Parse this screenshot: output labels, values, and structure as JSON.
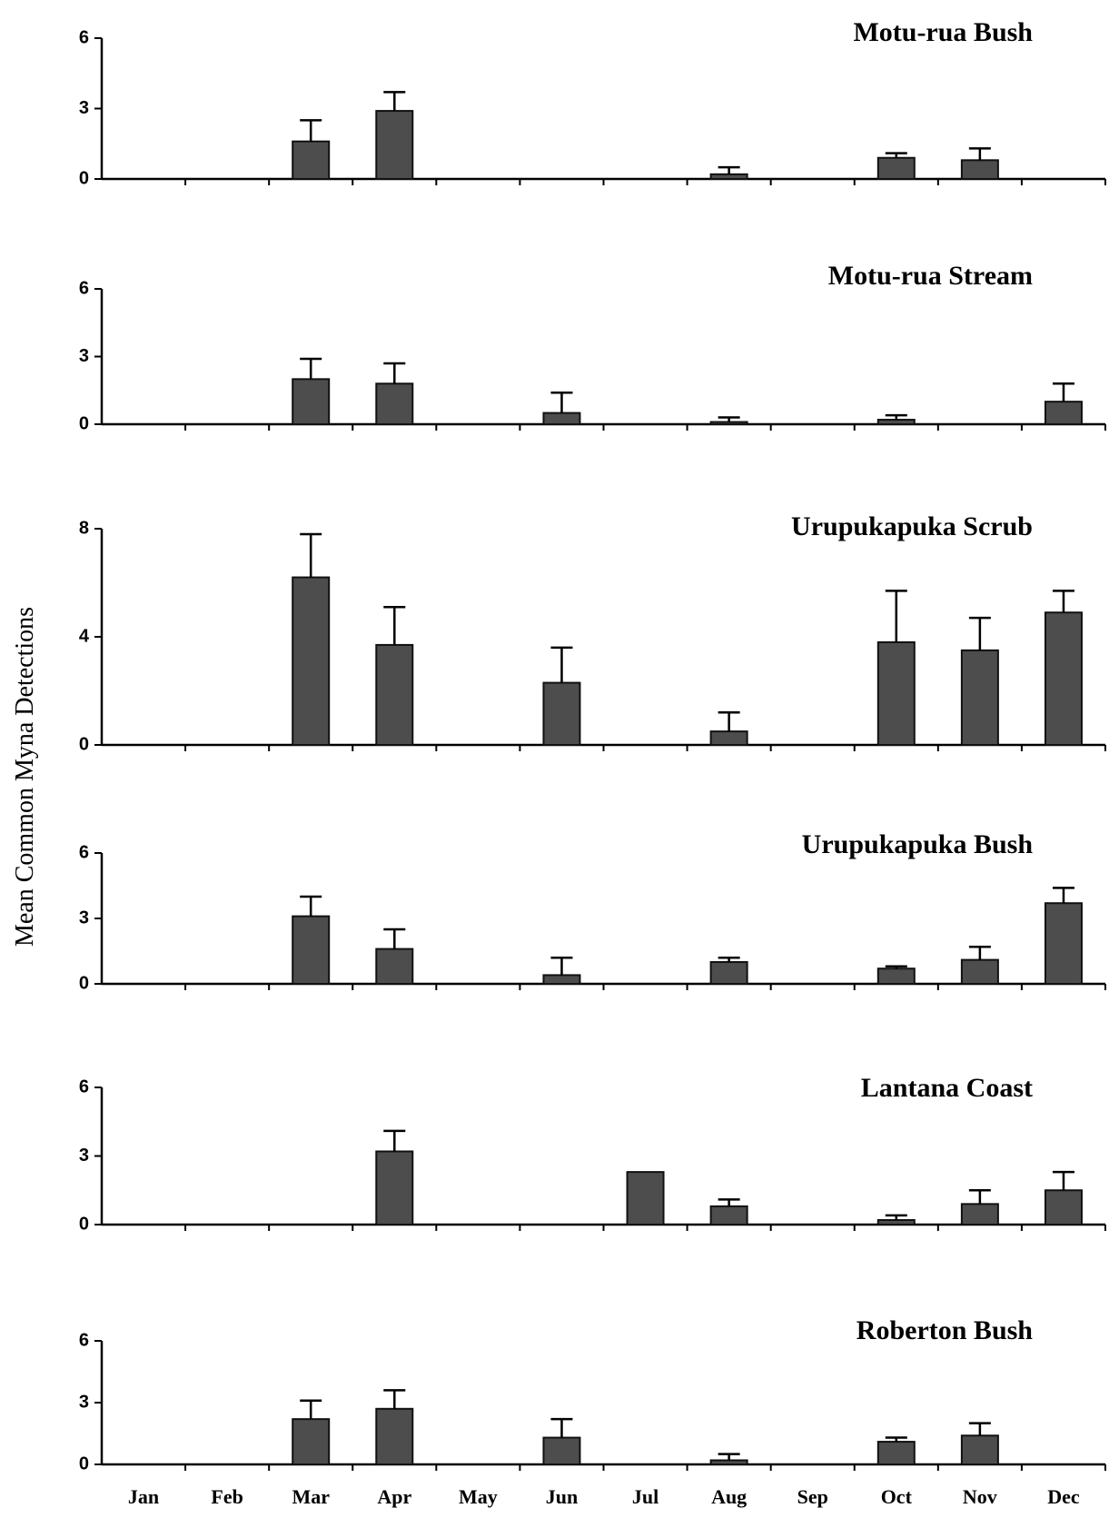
{
  "chart_data": {
    "type": "bar",
    "ylabel": "Mean Common Myna Detections",
    "categories": [
      "Jan",
      "Feb",
      "Mar",
      "Apr",
      "May",
      "Jun",
      "Jul",
      "Aug",
      "Sep",
      "Oct",
      "Nov",
      "Dec"
    ],
    "panels": [
      {
        "title": "Motu-rua Bush",
        "ylim": [
          0,
          6
        ],
        "yticks": [
          "0",
          "3",
          "6"
        ],
        "values": [
          0,
          0,
          1.6,
          2.9,
          0,
          0,
          0,
          0.2,
          0,
          0.9,
          0.8,
          0
        ],
        "errors": [
          0,
          0,
          0.9,
          0.8,
          0,
          0,
          0,
          0.3,
          0,
          0.2,
          0.5,
          0
        ]
      },
      {
        "title": "Motu-rua Stream",
        "ylim": [
          0,
          6
        ],
        "yticks": [
          "0",
          "3",
          "6"
        ],
        "values": [
          0,
          0,
          2.0,
          1.8,
          0,
          0.5,
          0,
          0.1,
          0,
          0.2,
          0,
          1.0
        ],
        "errors": [
          0,
          0,
          0.9,
          0.9,
          0,
          0.9,
          0,
          0.2,
          0,
          0.2,
          0,
          0.8
        ]
      },
      {
        "title": "Urupukapuka Scrub",
        "ylim": [
          0,
          8
        ],
        "yticks": [
          "0",
          "4",
          "8"
        ],
        "values": [
          0,
          0,
          6.2,
          3.7,
          0,
          2.3,
          0,
          0.5,
          0,
          3.8,
          3.5,
          4.9
        ],
        "errors": [
          0,
          0,
          1.6,
          1.4,
          0,
          1.3,
          0,
          0.7,
          0,
          1.9,
          1.2,
          0.8
        ]
      },
      {
        "title": "Urupukapuka Bush",
        "ylim": [
          0,
          6
        ],
        "yticks": [
          "0",
          "3",
          "6"
        ],
        "values": [
          0,
          0,
          3.1,
          1.6,
          0,
          0.4,
          0,
          1.0,
          0,
          0.7,
          1.1,
          3.7
        ],
        "errors": [
          0,
          0,
          0.9,
          0.9,
          0,
          0.8,
          0,
          0.2,
          0,
          0.1,
          0.6,
          0.7
        ]
      },
      {
        "title": "Lantana Coast",
        "ylim": [
          0,
          6
        ],
        "yticks": [
          "0",
          "3",
          "6"
        ],
        "values": [
          0,
          0,
          0,
          3.2,
          0,
          0,
          2.3,
          0.8,
          0,
          0.2,
          0.9,
          1.5
        ],
        "errors": [
          0,
          0,
          0,
          0.9,
          0,
          0,
          0,
          0.3,
          0,
          0.2,
          0.6,
          0.8
        ]
      },
      {
        "title": "Roberton Bush",
        "ylim": [
          0,
          6
        ],
        "yticks": [
          "0",
          "3",
          "6"
        ],
        "values": [
          0,
          0,
          2.2,
          2.7,
          0,
          1.3,
          0,
          0.2,
          0,
          1.1,
          1.4,
          0
        ],
        "errors": [
          0,
          0,
          0.9,
          0.9,
          0,
          0.9,
          0,
          0.3,
          0,
          0.2,
          0.6,
          0
        ]
      }
    ],
    "grid": false,
    "legend": "none"
  }
}
